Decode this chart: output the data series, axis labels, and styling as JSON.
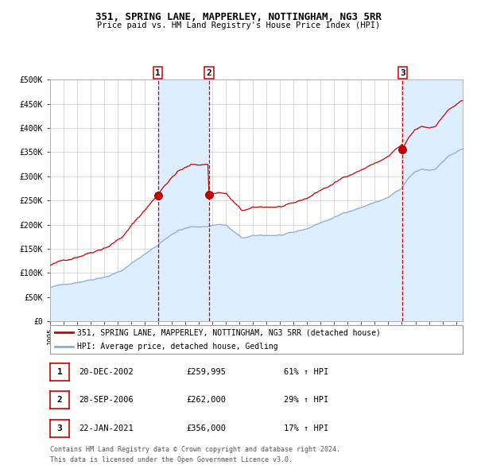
{
  "title": "351, SPRING LANE, MAPPERLEY, NOTTINGHAM, NG3 5RR",
  "subtitle": "Price paid vs. HM Land Registry's House Price Index (HPI)",
  "legend_property": "351, SPRING LANE, MAPPERLEY, NOTTINGHAM, NG3 5RR (detached house)",
  "legend_hpi": "HPI: Average price, detached house, Gedling",
  "ylim": [
    0,
    500000
  ],
  "yticks": [
    0,
    50000,
    100000,
    150000,
    200000,
    250000,
    300000,
    350000,
    400000,
    450000,
    500000
  ],
  "ytick_labels": [
    "£0",
    "£50K",
    "£100K",
    "£150K",
    "£200K",
    "£250K",
    "£300K",
    "£350K",
    "£400K",
    "£450K",
    "£500K"
  ],
  "sale1_date": "2002-12-20",
  "sale1_price": 259995,
  "sale2_date": "2006-09-28",
  "sale2_price": 262000,
  "sale3_date": "2021-01-22",
  "sale3_price": 356000,
  "table_rows": [
    [
      "1",
      "20-DEC-2002",
      "£259,995",
      "61% ↑ HPI"
    ],
    [
      "2",
      "28-SEP-2006",
      "£262,000",
      "29% ↑ HPI"
    ],
    [
      "3",
      "22-JAN-2021",
      "£356,000",
      "17% ↑ HPI"
    ]
  ],
  "footer_line1": "Contains HM Land Registry data © Crown copyright and database right 2024.",
  "footer_line2": "This data is licensed under the Open Government Licence v3.0.",
  "property_color": "#cc0000",
  "hpi_color": "#88aadd",
  "hpi_fill_color": "#ddeeff",
  "shade_color": "#ddeeff",
  "vline_color": "#cc0000",
  "chart_bg": "#ffffff",
  "background_color": "#ffffff",
  "grid_color": "#cccccc"
}
